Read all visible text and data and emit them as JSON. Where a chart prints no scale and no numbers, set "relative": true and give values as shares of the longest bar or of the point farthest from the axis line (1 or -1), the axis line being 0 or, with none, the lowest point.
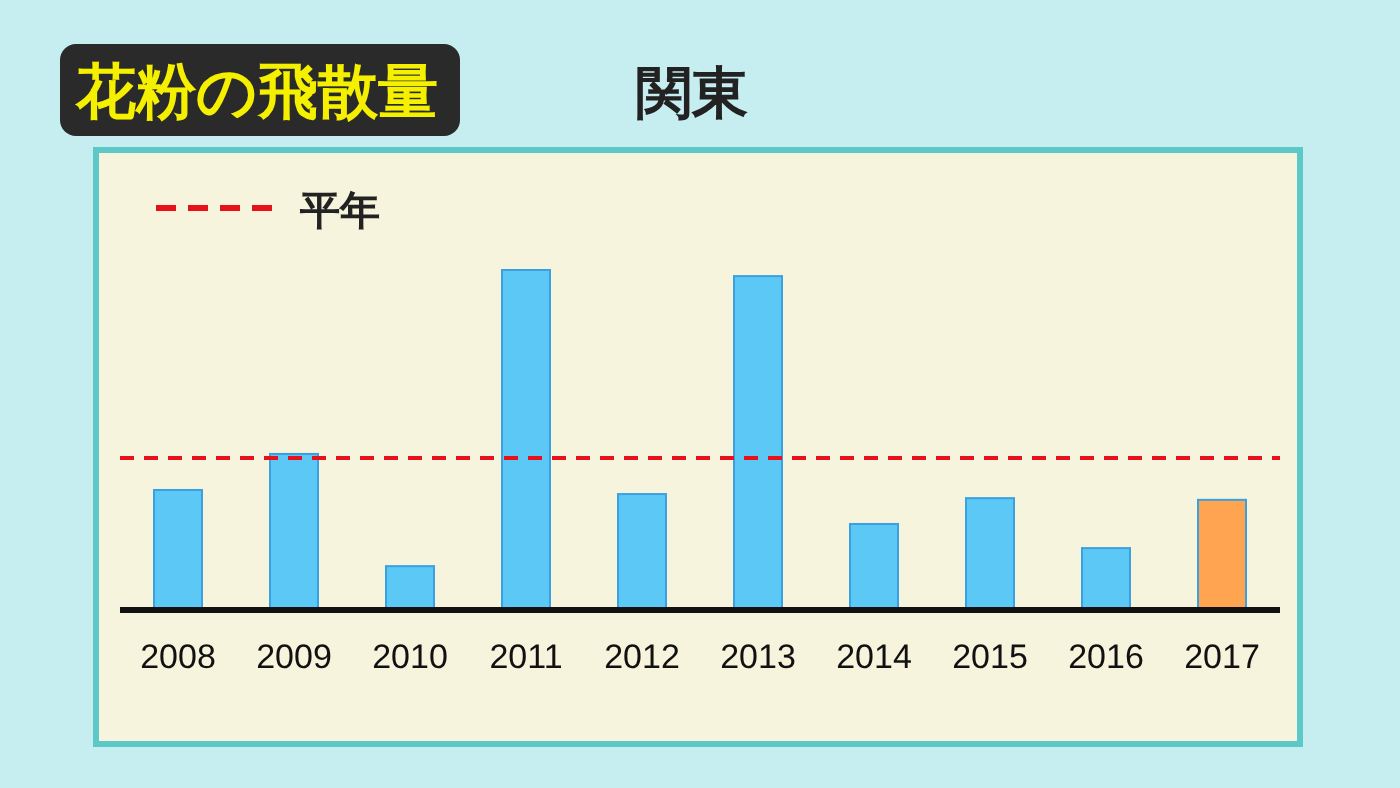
{
  "chart_data": {
    "type": "bar",
    "title": "花粉の飛散量",
    "subtitle": "関東",
    "relative": true,
    "categories": [
      "2008",
      "2009",
      "2010",
      "2011",
      "2012",
      "2013",
      "2014",
      "2015",
      "2016",
      "2017"
    ],
    "values": [
      0.353,
      0.459,
      0.129,
      1,
      0.341,
      0.982,
      0.253,
      0.329,
      0.182,
      0.324
    ],
    "colors": [
      "#5bc8f5",
      "#5bc8f5",
      "#5bc8f5",
      "#5bc8f5",
      "#5bc8f5",
      "#5bc8f5",
      "#5bc8f5",
      "#5bc8f5",
      "#5bc8f5",
      "#ffa552"
    ],
    "ref_lines": [
      {
        "axis": "y",
        "value": 0.447,
        "label": "平年",
        "color": "#e8101a",
        "line_style": "dashed"
      }
    ]
  }
}
